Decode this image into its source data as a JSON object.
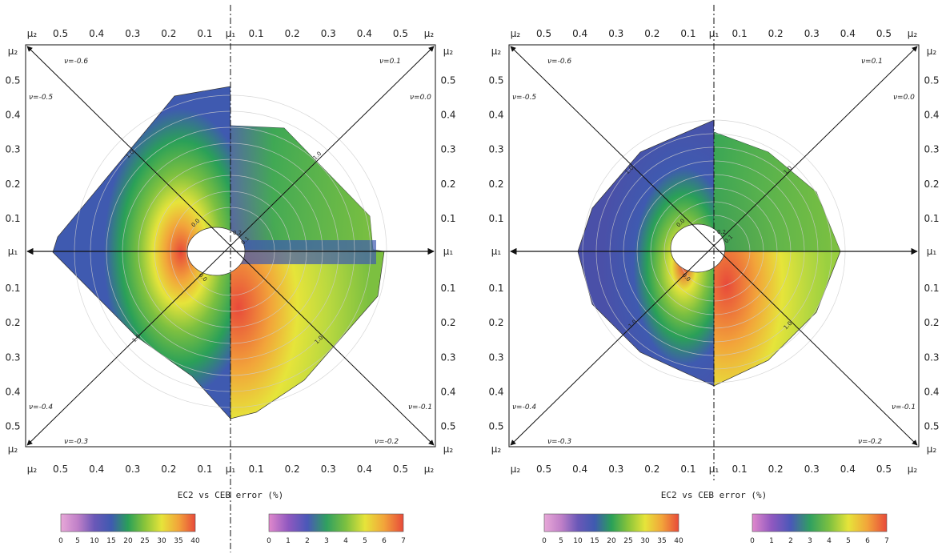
{
  "figure": {
    "panels": [
      {
        "caption": "EC2 vs CEB error (%)"
      },
      {
        "caption": "EC2 vs CEB error (%)"
      }
    ],
    "axis_labels": {
      "mu1": "μ₁",
      "mu2": "μ₂"
    },
    "outer_tick_labels": [
      "0.5",
      "0.4",
      "0.3",
      "0.2",
      "0.1"
    ],
    "nu_labels": {
      "top_left": "ν=-0.6",
      "upper_left": "ν=-0.5",
      "top_right": "ν=0.1",
      "upper_right": "ν=0.0",
      "lower_left": "ν=-0.4",
      "bottom_left": "ν=-0.3",
      "lower_right": "ν=-0.1",
      "bottom_right": "ν=-0.2"
    },
    "iso_labels": [
      "1.0",
      "0.0",
      "0.2",
      "0.1"
    ]
  },
  "colorbars": [
    {
      "ticks": [
        "0",
        "5",
        "10",
        "15",
        "20",
        "25",
        "30",
        "35",
        "40"
      ],
      "colors": [
        "#e8a8d8",
        "#c080c8",
        "#6a58b8",
        "#3f5ab0",
        "#2aa058",
        "#8ac43a",
        "#e6e43a",
        "#f2a43a",
        "#e84a3a"
      ]
    },
    {
      "ticks": [
        "0",
        "1",
        "2",
        "3",
        "4",
        "5",
        "6",
        "7"
      ],
      "colors": [
        "#e088cc",
        "#9058c0",
        "#4a58b8",
        "#30a060",
        "#7cc040",
        "#e6e43a",
        "#f2a43a",
        "#e84a3a"
      ]
    }
  ],
  "chart_data": [
    {
      "type": "heatmap",
      "title": "",
      "caption": "EC2 vs CEB error (%)",
      "axes": {
        "horizontal": [
          "μ₂",
          "μ₁",
          "μ₂"
        ],
        "vertical": [
          "μ₂",
          "μ₁",
          "μ₂"
        ],
        "tick_values": [
          0.5,
          0.4,
          0.3,
          0.2,
          0.1
        ]
      },
      "left_half_scale": {
        "min": 0,
        "max": 40,
        "ticks": [
          0,
          5,
          10,
          15,
          20,
          25,
          30,
          35,
          40
        ]
      },
      "right_half_scale": {
        "min": 0,
        "max": 7,
        "ticks": [
          0,
          1,
          2,
          3,
          4,
          5,
          6,
          7
        ]
      },
      "colors": {
        "low": "#3f5ab0",
        "mid": "#7cc040",
        "high": "#e84a3a"
      }
    },
    {
      "type": "heatmap",
      "title": "",
      "caption": "EC2 vs CEB error (%)",
      "axes": {
        "horizontal": [
          "μ₂",
          "μ₁",
          "μ₂"
        ],
        "vertical": [
          "μ₂",
          "μ₁",
          "μ₂"
        ],
        "tick_values": [
          0.5,
          0.4,
          0.3,
          0.2,
          0.1
        ]
      },
      "left_half_scale": {
        "min": 0,
        "max": 40,
        "ticks": [
          0,
          5,
          10,
          15,
          20,
          25,
          30,
          35,
          40
        ]
      },
      "right_half_scale": {
        "min": 0,
        "max": 7,
        "ticks": [
          0,
          1,
          2,
          3,
          4,
          5,
          6,
          7
        ]
      },
      "colors": {
        "low": "#3f5ab0",
        "mid": "#7cc040",
        "high": "#e84a3a"
      }
    }
  ]
}
